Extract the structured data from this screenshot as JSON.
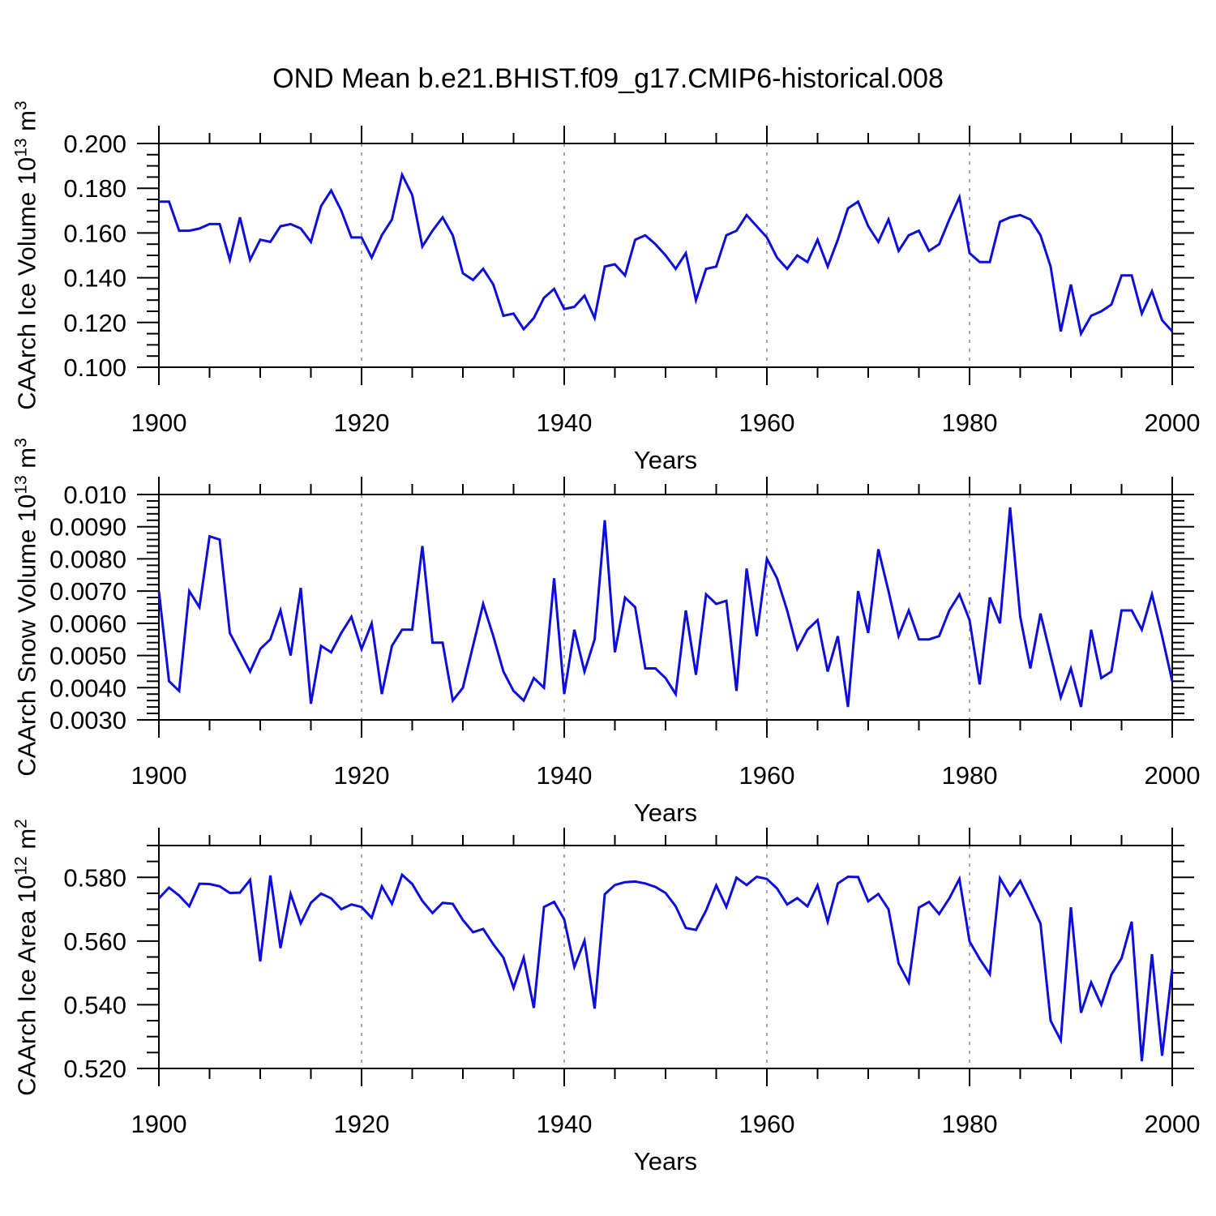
{
  "title": "OND Mean b.e21.BHIST.f09_g17.CMIP6-historical.008",
  "line_color": "#0d0ddd",
  "grid_color": "#7a7a7a",
  "frame_color": "#000000",
  "chart_data": {
    "type": "line",
    "title": "OND Mean b.e21.BHIST.f09_g17.CMIP6-historical.008",
    "x": [
      1900,
      1901,
      1902,
      1903,
      1904,
      1905,
      1906,
      1907,
      1908,
      1909,
      1910,
      1911,
      1912,
      1913,
      1914,
      1915,
      1916,
      1917,
      1918,
      1919,
      1920,
      1921,
      1922,
      1923,
      1924,
      1925,
      1926,
      1927,
      1928,
      1929,
      1930,
      1931,
      1932,
      1933,
      1934,
      1935,
      1936,
      1937,
      1938,
      1939,
      1940,
      1941,
      1942,
      1943,
      1944,
      1945,
      1946,
      1947,
      1948,
      1949,
      1950,
      1951,
      1952,
      1953,
      1954,
      1955,
      1956,
      1957,
      1958,
      1959,
      1960,
      1961,
      1962,
      1963,
      1964,
      1965,
      1966,
      1967,
      1968,
      1969,
      1970,
      1971,
      1972,
      1973,
      1974,
      1975,
      1976,
      1977,
      1978,
      1979,
      1980,
      1981,
      1982,
      1983,
      1984,
      1985,
      1986,
      1987,
      1988,
      1989,
      1990,
      1991,
      1992,
      1993,
      1994,
      1995,
      1996,
      1997,
      1998,
      1999,
      2000
    ],
    "panels": [
      {
        "name": "ice-volume",
        "ylabel_segments": [
          {
            "t": "CAArch Ice Volume 10"
          },
          {
            "t": "13",
            "sup": true
          },
          {
            "t": " m"
          },
          {
            "t": "3",
            "sup": true
          }
        ],
        "xlabel": "Years",
        "xlim": [
          1900,
          2000
        ],
        "x_major_ticks": [
          1900,
          1920,
          1940,
          1960,
          1980,
          2000
        ],
        "x_minor_step": 5,
        "grid_years": [
          1920,
          1940,
          1960,
          1980
        ],
        "ylim": [
          0.1,
          0.2
        ],
        "y_ticks": [
          {
            "v": 0.2,
            "label": "0.200"
          },
          {
            "v": 0.18,
            "label": "0.180"
          },
          {
            "v": 0.16,
            "label": "0.160"
          },
          {
            "v": 0.14,
            "label": "0.140"
          },
          {
            "v": 0.12,
            "label": "0.120"
          },
          {
            "v": 0.1,
            "label": "0.100"
          }
        ],
        "y_minor_step": 0.005,
        "values": [
          0.174,
          0.174,
          0.161,
          0.161,
          0.162,
          0.164,
          0.164,
          0.148,
          0.167,
          0.148,
          0.157,
          0.156,
          0.163,
          0.164,
          0.162,
          0.156,
          0.172,
          0.179,
          0.17,
          0.158,
          0.158,
          0.149,
          0.159,
          0.166,
          0.186,
          0.177,
          0.154,
          0.161,
          0.167,
          0.159,
          0.142,
          0.139,
          0.144,
          0.137,
          0.123,
          0.124,
          0.117,
          0.122,
          0.131,
          0.135,
          0.126,
          0.127,
          0.132,
          0.122,
          0.145,
          0.146,
          0.141,
          0.157,
          0.159,
          0.155,
          0.15,
          0.144,
          0.151,
          0.13,
          0.144,
          0.145,
          0.159,
          0.161,
          0.168,
          0.163,
          0.158,
          0.149,
          0.144,
          0.15,
          0.147,
          0.157,
          0.145,
          0.157,
          0.171,
          0.174,
          0.163,
          0.156,
          0.166,
          0.152,
          0.159,
          0.161,
          0.152,
          0.155,
          0.166,
          0.176,
          0.151,
          0.147,
          0.147,
          0.165,
          0.167,
          0.168,
          0.166,
          0.159,
          0.145,
          0.116,
          0.137,
          0.115,
          0.123,
          0.125,
          0.128,
          0.141,
          0.141,
          0.124,
          0.134,
          0.121,
          0.116
        ]
      },
      {
        "name": "snow-volume",
        "ylabel_segments": [
          {
            "t": "CAArch Snow Volume 10"
          },
          {
            "t": "13",
            "sup": true
          },
          {
            "t": " m"
          },
          {
            "t": "3",
            "sup": true
          }
        ],
        "xlabel": "Years",
        "xlim": [
          1900,
          2000
        ],
        "x_major_ticks": [
          1900,
          1920,
          1940,
          1960,
          1980,
          2000
        ],
        "x_minor_step": 5,
        "grid_years": [
          1920,
          1940,
          1960,
          1980
        ],
        "ylim": [
          0.003,
          0.01
        ],
        "y_ticks": [
          {
            "v": 0.01,
            "label": "0.010"
          },
          {
            "v": 0.009,
            "label": "0.0090"
          },
          {
            "v": 0.008,
            "label": "0.0080"
          },
          {
            "v": 0.007,
            "label": "0.0070"
          },
          {
            "v": 0.006,
            "label": "0.0060"
          },
          {
            "v": 0.005,
            "label": "0.0050"
          },
          {
            "v": 0.004,
            "label": "0.0040"
          },
          {
            "v": 0.003,
            "label": "0.0030"
          }
        ],
        "y_minor_step": 0.0002,
        "values": [
          0.007,
          0.0042,
          0.0039,
          0.007,
          0.0065,
          0.0087,
          0.0086,
          0.0057,
          0.0051,
          0.0045,
          0.0052,
          0.0055,
          0.0064,
          0.005,
          0.0071,
          0.0035,
          0.0053,
          0.0051,
          0.0057,
          0.0062,
          0.0052,
          0.006,
          0.0038,
          0.0053,
          0.0058,
          0.0058,
          0.0084,
          0.0054,
          0.0054,
          0.0036,
          0.004,
          0.0053,
          0.0066,
          0.0056,
          0.0045,
          0.0039,
          0.0036,
          0.0043,
          0.004,
          0.0074,
          0.0038,
          0.0058,
          0.0045,
          0.0055,
          0.0092,
          0.0051,
          0.0068,
          0.0065,
          0.0046,
          0.0046,
          0.0043,
          0.0038,
          0.0064,
          0.0044,
          0.0069,
          0.0066,
          0.0067,
          0.0039,
          0.0077,
          0.0056,
          0.008,
          0.0074,
          0.0064,
          0.0052,
          0.0058,
          0.0061,
          0.0045,
          0.0056,
          0.0034,
          0.007,
          0.0057,
          0.0083,
          0.007,
          0.0056,
          0.0064,
          0.0055,
          0.0055,
          0.0056,
          0.0064,
          0.0069,
          0.0061,
          0.0041,
          0.0068,
          0.006,
          0.0096,
          0.0062,
          0.0046,
          0.0063,
          0.005,
          0.0037,
          0.0046,
          0.0034,
          0.0058,
          0.0043,
          0.0045,
          0.0064,
          0.0064,
          0.0058,
          0.0069,
          0.0056,
          0.0042
        ]
      },
      {
        "name": "ice-area",
        "ylabel_segments": [
          {
            "t": "CAArch Ice Area 10"
          },
          {
            "t": "12",
            "sup": true
          },
          {
            "t": " m"
          },
          {
            "t": "2",
            "sup": true
          }
        ],
        "xlabel": "Years",
        "xlim": [
          1900,
          2000
        ],
        "x_major_ticks": [
          1900,
          1920,
          1940,
          1960,
          1980,
          2000
        ],
        "x_minor_step": 5,
        "grid_years": [
          1920,
          1940,
          1960,
          1980
        ],
        "ylim": [
          0.52,
          0.59
        ],
        "y_ticks": [
          {
            "v": 0.58,
            "label": "0.580"
          },
          {
            "v": 0.56,
            "label": "0.560"
          },
          {
            "v": 0.54,
            "label": "0.540"
          },
          {
            "v": 0.52,
            "label": "0.520"
          }
        ],
        "y_minor_step": 0.005,
        "values": [
          0.5734,
          0.5768,
          0.5743,
          0.5709,
          0.578,
          0.5779,
          0.5772,
          0.5751,
          0.5752,
          0.5792,
          0.5536,
          0.5806,
          0.5578,
          0.5748,
          0.5656,
          0.572,
          0.5749,
          0.5734,
          0.57,
          0.5715,
          0.5707,
          0.5673,
          0.5772,
          0.5717,
          0.5808,
          0.5779,
          0.5726,
          0.5688,
          0.572,
          0.5717,
          0.5666,
          0.5628,
          0.5638,
          0.559,
          0.5548,
          0.5453,
          0.5548,
          0.539,
          0.5707,
          0.5723,
          0.5668,
          0.5519,
          0.5601,
          0.5388,
          0.5747,
          0.5776,
          0.5785,
          0.5787,
          0.5781,
          0.577,
          0.5751,
          0.5709,
          0.5641,
          0.5635,
          0.5696,
          0.5775,
          0.5707,
          0.5799,
          0.5776,
          0.5802,
          0.5795,
          0.5765,
          0.5715,
          0.5735,
          0.5709,
          0.5775,
          0.5661,
          0.5781,
          0.5802,
          0.5801,
          0.5725,
          0.5748,
          0.57,
          0.553,
          0.547,
          0.5705,
          0.5723,
          0.5685,
          0.5734,
          0.5795,
          0.5599,
          0.5544,
          0.5496,
          0.5797,
          0.5743,
          0.5789,
          0.5723,
          0.5655,
          0.535,
          0.5288,
          0.5706,
          0.5375,
          0.547,
          0.54,
          0.5495,
          0.5546,
          0.5661,
          0.5223,
          0.5559,
          0.524,
          0.5512
        ]
      }
    ]
  }
}
